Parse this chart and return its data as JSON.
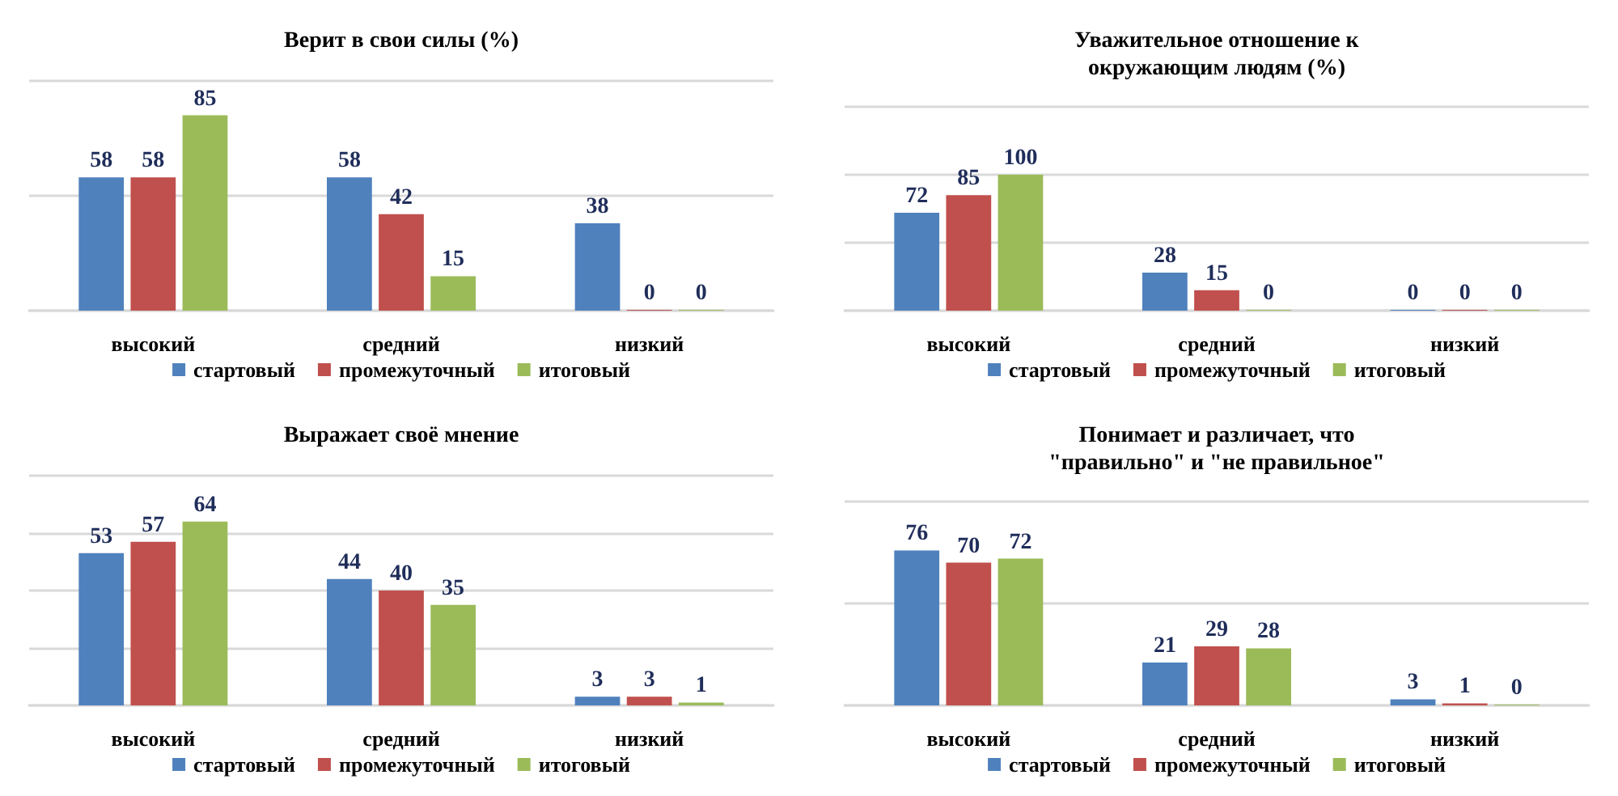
{
  "chart_data": [
    {
      "type": "bar",
      "title": "Верит в свои силы (%)",
      "categories": [
        "высокий",
        "средний",
        "низкий"
      ],
      "series": [
        {
          "name": "стартовый",
          "color": "#4f81bd",
          "values": [
            58,
            58,
            38
          ]
        },
        {
          "name": "промежуточный",
          "color": "#c0504d",
          "values": [
            58,
            42,
            0
          ]
        },
        {
          "name": "итоговый",
          "color": "#9bbb59",
          "values": [
            85,
            15,
            0
          ]
        }
      ],
      "ylim": [
        0,
        100
      ],
      "yticks": [
        {
          "value": 0,
          "label": null
        },
        {
          "value": 50,
          "label": null
        },
        {
          "value": 100,
          "label": null
        }
      ],
      "tick_labels": "x",
      "grid": "y",
      "legend": "bottom",
      "data_labels": true
    },
    {
      "type": "bar",
      "title": "Уважительное отношение к\nокружающим людям (%)",
      "categories": [
        "высокий",
        "средний",
        "низкий"
      ],
      "series": [
        {
          "name": "стартовый",
          "color": "#4f81bd",
          "values": [
            72,
            28,
            0
          ]
        },
        {
          "name": "промежуточный",
          "color": "#c0504d",
          "values": [
            85,
            15,
            0
          ]
        },
        {
          "name": "итоговый",
          "color": "#9bbb59",
          "values": [
            100,
            0,
            0
          ]
        }
      ],
      "ylim": [
        0,
        150
      ],
      "yticks": [
        {
          "value": 0,
          "label": null
        },
        {
          "value": 50,
          "label": null
        },
        {
          "value": 100,
          "label": null
        },
        {
          "value": 150,
          "label": null
        }
      ],
      "tick_labels": "x",
      "grid": "y",
      "legend": "bottom",
      "data_labels": true
    },
    {
      "type": "bar",
      "title": "Выражает своё мнение",
      "categories": [
        "высокий",
        "средний",
        "низкий"
      ],
      "series": [
        {
          "name": "стартовый",
          "color": "#4f81bd",
          "values": [
            53,
            44,
            3
          ]
        },
        {
          "name": "промежуточный",
          "color": "#c0504d",
          "values": [
            57,
            40,
            3
          ]
        },
        {
          "name": "итоговый",
          "color": "#9bbb59",
          "values": [
            64,
            35,
            1
          ]
        }
      ],
      "ylim": [
        0,
        80
      ],
      "yticks": [
        {
          "value": 0,
          "label": null
        },
        {
          "value": 20,
          "label": null
        },
        {
          "value": 40,
          "label": null
        },
        {
          "value": 60,
          "label": null
        },
        {
          "value": 80,
          "label": null
        }
      ],
      "tick_labels": "x",
      "grid": "y",
      "legend": "bottom",
      "data_labels": true
    },
    {
      "type": "bar",
      "title": "Понимает и различает, что\n\"правильно\" и \"не правильное\"",
      "categories": [
        "высокий",
        "средний",
        "низкий"
      ],
      "series": [
        {
          "name": "стартовый",
          "color": "#4f81bd",
          "values": [
            76,
            21,
            3
          ]
        },
        {
          "name": "промежуточный",
          "color": "#c0504d",
          "values": [
            70,
            29,
            1
          ]
        },
        {
          "name": "итоговый",
          "color": "#9bbb59",
          "values": [
            72,
            28,
            0
          ]
        }
      ],
      "ylim": [
        0,
        100
      ],
      "yticks": [
        {
          "value": 0,
          "label": null
        },
        {
          "value": 50,
          "label": null
        },
        {
          "value": 100,
          "label": null
        }
      ],
      "tick_labels": "x",
      "grid": "y",
      "legend": "bottom",
      "data_labels": true
    }
  ]
}
